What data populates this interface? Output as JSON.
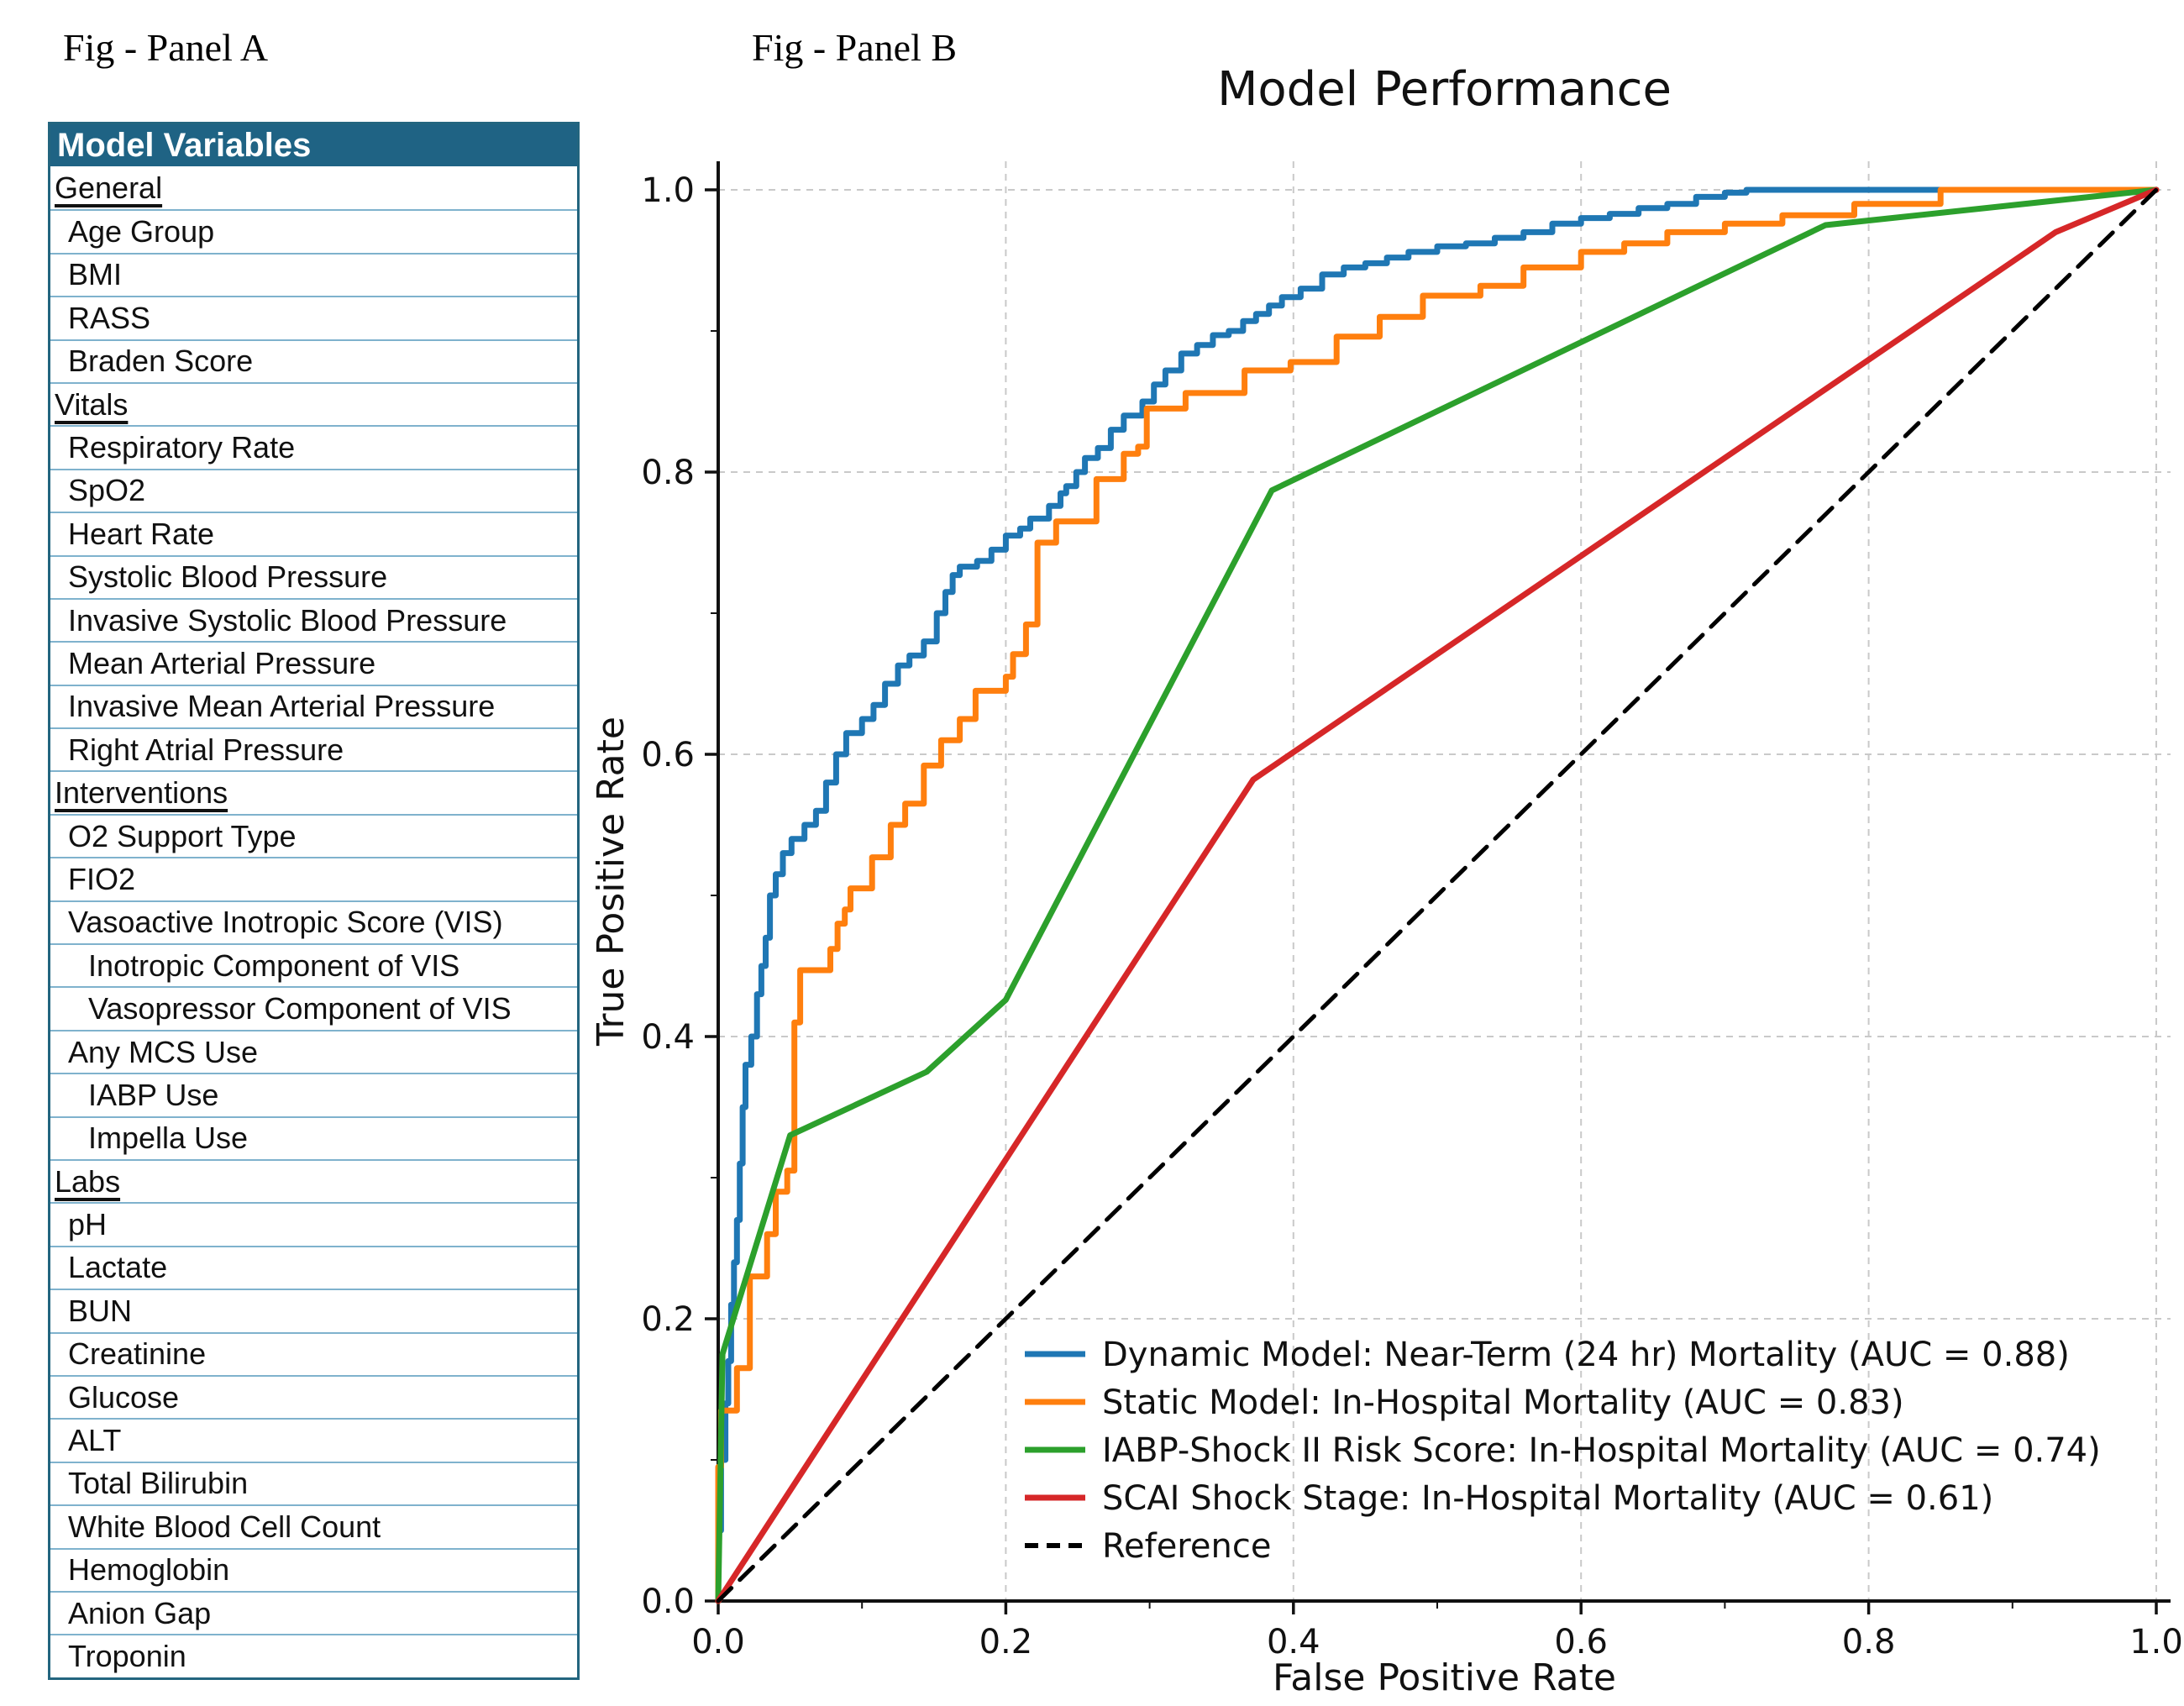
{
  "panel_a": {
    "label": "Fig - Panel A",
    "table": {
      "header": "Model Variables",
      "rows": [
        {
          "label": "General",
          "level": 0
        },
        {
          "label": "Age Group",
          "level": 1
        },
        {
          "label": "BMI",
          "level": 1
        },
        {
          "label": "RASS",
          "level": 1
        },
        {
          "label": "Braden Score",
          "level": 1
        },
        {
          "label": "Vitals",
          "level": 0
        },
        {
          "label": "Respiratory Rate",
          "level": 1
        },
        {
          "label": "SpO2",
          "level": 1
        },
        {
          "label": "Heart Rate",
          "level": 1
        },
        {
          "label": "Systolic Blood Pressure",
          "level": 1
        },
        {
          "label": "Invasive Systolic Blood Pressure",
          "level": 1
        },
        {
          "label": "Mean Arterial Pressure",
          "level": 1
        },
        {
          "label": "Invasive Mean Arterial Pressure",
          "level": 1
        },
        {
          "label": "Right Atrial Pressure",
          "level": 1
        },
        {
          "label": "Interventions",
          "level": 0
        },
        {
          "label": "O2 Support Type",
          "level": 1
        },
        {
          "label": "FIO2",
          "level": 1
        },
        {
          "label": "Vasoactive Inotropic Score (VIS)",
          "level": 1
        },
        {
          "label": "Inotropic Component of VIS",
          "level": 2
        },
        {
          "label": "Vasopressor Component of VIS",
          "level": 2
        },
        {
          "label": "Any MCS Use",
          "level": 1
        },
        {
          "label": "IABP Use",
          "level": 2
        },
        {
          "label": "Impella Use",
          "level": 2
        },
        {
          "label": "Labs",
          "level": 0
        },
        {
          "label": "pH",
          "level": 1
        },
        {
          "label": "Lactate",
          "level": 1
        },
        {
          "label": "BUN",
          "level": 1
        },
        {
          "label": "Creatinine",
          "level": 1
        },
        {
          "label": "Glucose",
          "level": 1
        },
        {
          "label": "ALT",
          "level": 1
        },
        {
          "label": "Total Bilirubin",
          "level": 1
        },
        {
          "label": "White Blood Cell Count",
          "level": 1
        },
        {
          "label": "Hemoglobin",
          "level": 1
        },
        {
          "label": "Anion Gap",
          "level": 1
        },
        {
          "label": "Troponin",
          "level": 1
        }
      ]
    },
    "colors": {
      "header_bg": "#1f6384",
      "row_border": "#7fb2cd",
      "outer_border": "#23657f"
    }
  },
  "panel_b": {
    "label": "Fig - Panel B"
  },
  "chart_data": {
    "type": "line",
    "title": "Model Performance",
    "xlabel": "False Positive Rate",
    "ylabel": "True Positive Rate",
    "xlim": [
      0.0,
      1.0
    ],
    "ylim": [
      0.0,
      1.0
    ],
    "xticks": [
      "0.0",
      "0.2",
      "0.4",
      "0.6",
      "0.8",
      "1.0"
    ],
    "yticks": [
      "0.0",
      "0.2",
      "0.4",
      "0.6",
      "0.8",
      "1.0"
    ],
    "tick_step": 0.2,
    "minor_tick_step": 0.1,
    "grid": true,
    "grid_color": "#c9c9c9",
    "axis_color": "#111111",
    "legend_position": "lower right",
    "series": [
      {
        "id": "dynamic-model",
        "name": "Dynamic Model: Near-Term (24 hr) Mortality (AUC = 0.88)",
        "auc": 0.88,
        "color": "#1f77b4",
        "dash": "solid",
        "step": true,
        "points": [
          [
            0,
            0
          ],
          [
            0.002,
            0.05
          ],
          [
            0.005,
            0.1
          ],
          [
            0.007,
            0.14
          ],
          [
            0.009,
            0.17
          ],
          [
            0.011,
            0.21
          ],
          [
            0.013,
            0.24
          ],
          [
            0.015,
            0.27
          ],
          [
            0.017,
            0.31
          ],
          [
            0.019,
            0.35
          ],
          [
            0.023,
            0.38
          ],
          [
            0.027,
            0.4
          ],
          [
            0.03,
            0.43
          ],
          [
            0.033,
            0.45
          ],
          [
            0.036,
            0.47
          ],
          [
            0.04,
            0.5
          ],
          [
            0.045,
            0.515
          ],
          [
            0.051,
            0.53
          ],
          [
            0.06,
            0.54
          ],
          [
            0.068,
            0.55
          ],
          [
            0.075,
            0.56
          ],
          [
            0.082,
            0.58
          ],
          [
            0.089,
            0.6
          ],
          [
            0.1,
            0.615
          ],
          [
            0.108,
            0.625
          ],
          [
            0.116,
            0.635
          ],
          [
            0.125,
            0.65
          ],
          [
            0.133,
            0.663
          ],
          [
            0.143,
            0.67
          ],
          [
            0.152,
            0.68
          ],
          [
            0.158,
            0.7
          ],
          [
            0.163,
            0.715
          ],
          [
            0.168,
            0.727
          ],
          [
            0.18,
            0.733
          ],
          [
            0.19,
            0.737
          ],
          [
            0.2,
            0.745
          ],
          [
            0.21,
            0.755
          ],
          [
            0.217,
            0.76
          ],
          [
            0.23,
            0.767
          ],
          [
            0.238,
            0.776
          ],
          [
            0.242,
            0.785
          ],
          [
            0.249,
            0.79
          ],
          [
            0.255,
            0.8
          ],
          [
            0.264,
            0.81
          ],
          [
            0.273,
            0.817
          ],
          [
            0.282,
            0.83
          ],
          [
            0.295,
            0.84
          ],
          [
            0.303,
            0.85
          ],
          [
            0.311,
            0.862
          ],
          [
            0.322,
            0.872
          ],
          [
            0.333,
            0.884
          ],
          [
            0.344,
            0.89
          ],
          [
            0.355,
            0.897
          ],
          [
            0.365,
            0.9
          ],
          [
            0.374,
            0.907
          ],
          [
            0.383,
            0.912
          ],
          [
            0.392,
            0.918
          ],
          [
            0.405,
            0.924
          ],
          [
            0.42,
            0.93
          ],
          [
            0.435,
            0.94
          ],
          [
            0.45,
            0.945
          ],
          [
            0.465,
            0.948
          ],
          [
            0.48,
            0.952
          ],
          [
            0.5,
            0.956
          ],
          [
            0.52,
            0.96
          ],
          [
            0.54,
            0.962
          ],
          [
            0.56,
            0.966
          ],
          [
            0.58,
            0.97
          ],
          [
            0.6,
            0.976
          ],
          [
            0.62,
            0.98
          ],
          [
            0.64,
            0.983
          ],
          [
            0.66,
            0.987
          ],
          [
            0.68,
            0.99
          ],
          [
            0.7,
            0.995
          ],
          [
            0.715,
            0.998
          ],
          [
            0.72,
            1.0
          ],
          [
            1.0,
            1.0
          ]
        ]
      },
      {
        "id": "static-model",
        "name": "Static Model: In-Hospital Mortality (AUC = 0.83)",
        "auc": 0.83,
        "color": "#ff7f0e",
        "dash": "solid",
        "step": true,
        "points": [
          [
            0,
            0
          ],
          [
            0.002,
            0.095
          ],
          [
            0.002,
            0.135
          ],
          [
            0.013,
            0.135
          ],
          [
            0.013,
            0.165
          ],
          [
            0.022,
            0.165
          ],
          [
            0.022,
            0.23
          ],
          [
            0.034,
            0.23
          ],
          [
            0.034,
            0.26
          ],
          [
            0.04,
            0.26
          ],
          [
            0.04,
            0.29
          ],
          [
            0.048,
            0.29
          ],
          [
            0.048,
            0.305
          ],
          [
            0.053,
            0.305
          ],
          [
            0.053,
            0.41
          ],
          [
            0.057,
            0.41
          ],
          [
            0.057,
            0.447
          ],
          [
            0.078,
            0.447
          ],
          [
            0.078,
            0.462
          ],
          [
            0.083,
            0.462
          ],
          [
            0.083,
            0.48
          ],
          [
            0.088,
            0.48
          ],
          [
            0.088,
            0.49
          ],
          [
            0.092,
            0.49
          ],
          [
            0.092,
            0.505
          ],
          [
            0.107,
            0.505
          ],
          [
            0.107,
            0.527
          ],
          [
            0.12,
            0.527
          ],
          [
            0.12,
            0.55
          ],
          [
            0.13,
            0.55
          ],
          [
            0.13,
            0.565
          ],
          [
            0.143,
            0.565
          ],
          [
            0.143,
            0.592
          ],
          [
            0.155,
            0.592
          ],
          [
            0.155,
            0.61
          ],
          [
            0.168,
            0.61
          ],
          [
            0.168,
            0.625
          ],
          [
            0.179,
            0.625
          ],
          [
            0.179,
            0.645
          ],
          [
            0.2,
            0.645
          ],
          [
            0.2,
            0.655
          ],
          [
            0.205,
            0.655
          ],
          [
            0.205,
            0.671
          ],
          [
            0.214,
            0.671
          ],
          [
            0.214,
            0.692
          ],
          [
            0.222,
            0.692
          ],
          [
            0.222,
            0.75
          ],
          [
            0.235,
            0.75
          ],
          [
            0.235,
            0.765
          ],
          [
            0.263,
            0.765
          ],
          [
            0.263,
            0.795
          ],
          [
            0.282,
            0.795
          ],
          [
            0.282,
            0.813
          ],
          [
            0.292,
            0.813
          ],
          [
            0.292,
            0.818
          ],
          [
            0.298,
            0.818
          ],
          [
            0.298,
            0.845
          ],
          [
            0.325,
            0.845
          ],
          [
            0.325,
            0.856
          ],
          [
            0.366,
            0.856
          ],
          [
            0.366,
            0.872
          ],
          [
            0.398,
            0.872
          ],
          [
            0.398,
            0.878
          ],
          [
            0.43,
            0.878
          ],
          [
            0.43,
            0.896
          ],
          [
            0.46,
            0.896
          ],
          [
            0.46,
            0.91
          ],
          [
            0.49,
            0.91
          ],
          [
            0.49,
            0.925
          ],
          [
            0.53,
            0.925
          ],
          [
            0.53,
            0.932
          ],
          [
            0.56,
            0.932
          ],
          [
            0.56,
            0.945
          ],
          [
            0.6,
            0.945
          ],
          [
            0.6,
            0.956
          ],
          [
            0.63,
            0.956
          ],
          [
            0.63,
            0.962
          ],
          [
            0.66,
            0.962
          ],
          [
            0.66,
            0.97
          ],
          [
            0.7,
            0.97
          ],
          [
            0.7,
            0.976
          ],
          [
            0.74,
            0.976
          ],
          [
            0.74,
            0.982
          ],
          [
            0.79,
            0.982
          ],
          [
            0.79,
            0.99
          ],
          [
            0.85,
            0.99
          ],
          [
            0.85,
            1.0
          ],
          [
            1.0,
            1.0
          ]
        ]
      },
      {
        "id": "iabp-shock-ii",
        "name": "IABP-Shock II Risk Score: In-Hospital Mortality (AUC = 0.74)",
        "auc": 0.74,
        "color": "#2ca02c",
        "dash": "solid",
        "step": false,
        "points": [
          [
            0,
            0
          ],
          [
            0.003,
            0.175
          ],
          [
            0.05,
            0.33
          ],
          [
            0.145,
            0.375
          ],
          [
            0.2,
            0.426
          ],
          [
            0.385,
            0.787
          ],
          [
            0.77,
            0.975
          ],
          [
            1.0,
            1.0
          ]
        ]
      },
      {
        "id": "scai-shock-stage",
        "name": "SCAI Shock Stage: In-Hospital Mortality (AUC = 0.61)",
        "auc": 0.61,
        "color": "#d62728",
        "dash": "solid",
        "step": false,
        "points": [
          [
            0,
            0
          ],
          [
            0.372,
            0.582
          ],
          [
            0.93,
            0.97
          ],
          [
            1.0,
            1.0
          ]
        ]
      },
      {
        "id": "reference",
        "name": "Reference",
        "color": "#000000",
        "dash": "dashed",
        "step": false,
        "points": [
          [
            0,
            0
          ],
          [
            1.0,
            1.0
          ]
        ]
      }
    ]
  }
}
